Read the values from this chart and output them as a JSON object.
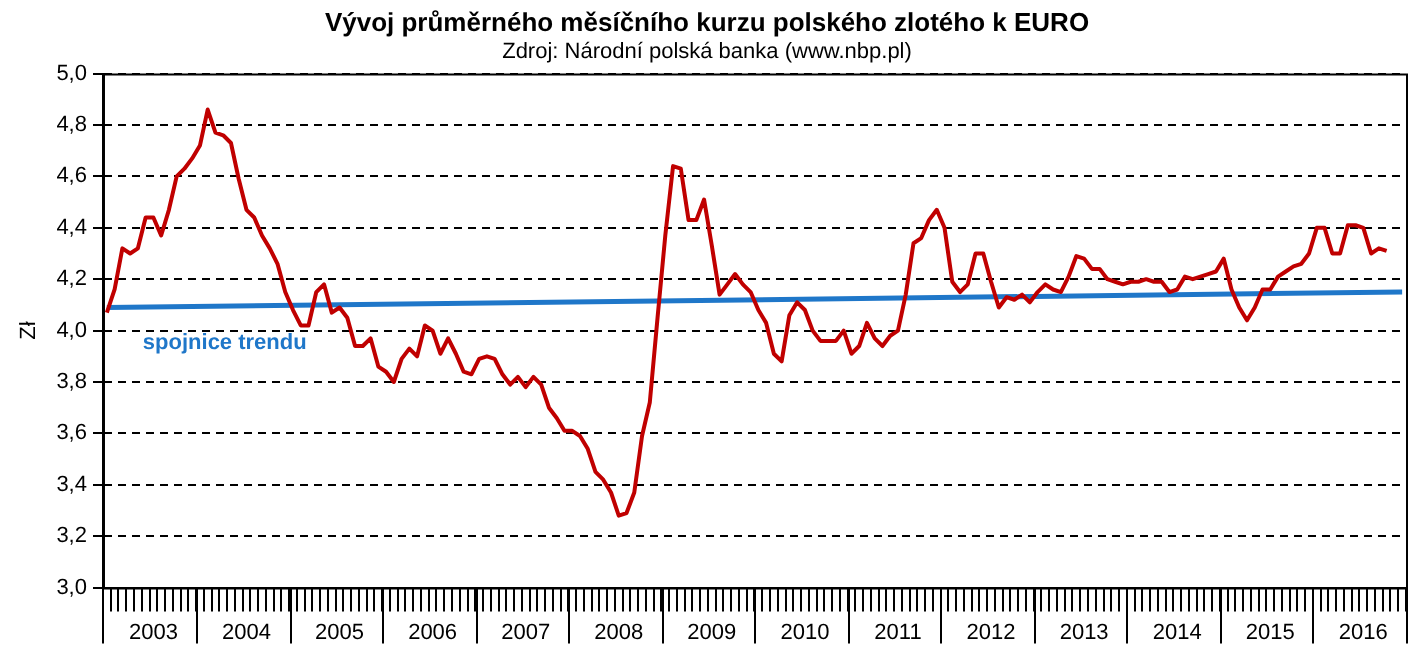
{
  "chart_data": {
    "type": "line",
    "title": "Vývoj průměrného měsíčního kurzu polského zlotého k EURO",
    "subtitle": "Zdroj: Národní polská banka (www.nbp.pl)",
    "ylabel": "Zł",
    "categories": [
      null,
      null,
      null,
      null,
      null,
      null,
      "2003",
      null,
      null,
      null,
      null,
      null,
      null,
      null,
      null,
      null,
      null,
      null,
      "2004",
      null,
      null,
      null,
      null,
      null,
      null,
      null,
      null,
      null,
      null,
      null,
      "2005",
      null,
      null,
      null,
      null,
      null,
      null,
      null,
      null,
      null,
      null,
      null,
      "2006",
      null,
      null,
      null,
      null,
      null,
      null,
      null,
      null,
      null,
      null,
      null,
      "2007",
      null,
      null,
      null,
      null,
      null,
      null,
      null,
      null,
      null,
      null,
      null,
      "2008",
      null,
      null,
      null,
      null,
      null,
      null,
      null,
      null,
      null,
      null,
      null,
      "2009",
      null,
      null,
      null,
      null,
      null,
      null,
      null,
      null,
      null,
      null,
      null,
      "2010",
      null,
      null,
      null,
      null,
      null,
      null,
      null,
      null,
      null,
      null,
      null,
      "2011",
      null,
      null,
      null,
      null,
      null,
      null,
      null,
      null,
      null,
      null,
      null,
      "2012",
      null,
      null,
      null,
      null,
      null,
      null,
      null,
      null,
      null,
      null,
      null,
      "2013",
      null,
      null,
      null,
      null,
      null,
      null,
      null,
      null,
      null,
      null,
      null,
      "2014",
      null,
      null,
      null,
      null,
      null,
      null,
      null,
      null,
      null,
      null,
      null,
      "2015",
      null,
      null,
      null,
      null,
      null,
      null,
      null,
      null,
      null,
      null,
      null,
      "2016",
      null,
      null,
      null,
      null,
      null
    ],
    "series": [
      {
        "color": "#c00000",
        "values": [
          4.07,
          4.16,
          4.32,
          4.3,
          4.32,
          4.44,
          4.44,
          4.37,
          4.47,
          4.6,
          4.63,
          4.67,
          4.72,
          4.86,
          4.77,
          4.76,
          4.73,
          4.59,
          4.47,
          4.44,
          4.37,
          4.32,
          4.26,
          4.15,
          4.08,
          4.02,
          4.02,
          4.15,
          4.18,
          4.07,
          4.09,
          4.05,
          3.94,
          3.94,
          3.97,
          3.86,
          3.84,
          3.8,
          3.89,
          3.93,
          3.9,
          4.02,
          4.0,
          3.91,
          3.97,
          3.91,
          3.84,
          3.83,
          3.89,
          3.9,
          3.89,
          3.83,
          3.79,
          3.82,
          3.78,
          3.82,
          3.79,
          3.7,
          3.66,
          3.61,
          3.61,
          3.59,
          3.54,
          3.45,
          3.42,
          3.37,
          3.28,
          3.29,
          3.37,
          3.59,
          3.72,
          4.05,
          4.37,
          4.64,
          4.63,
          4.43,
          4.43,
          4.51,
          4.33,
          4.14,
          4.18,
          4.22,
          4.18,
          4.15,
          4.08,
          4.03,
          3.91,
          3.88,
          4.06,
          4.11,
          4.08,
          4.0,
          3.96,
          3.96,
          3.96,
          4.0,
          3.91,
          3.94,
          4.03,
          3.97,
          3.94,
          3.98,
          4.0,
          4.14,
          4.34,
          4.36,
          4.43,
          4.47,
          4.4,
          4.19,
          4.15,
          4.18,
          4.3,
          4.3,
          4.19,
          4.09,
          4.13,
          4.12,
          4.14,
          4.11,
          4.15,
          4.18,
          4.16,
          4.15,
          4.21,
          4.29,
          4.28,
          4.24,
          4.24,
          4.2,
          4.19,
          4.18,
          4.19,
          4.19,
          4.2,
          4.19,
          4.19,
          4.15,
          4.16,
          4.21,
          4.2,
          4.21,
          4.22,
          4.23,
          4.28,
          4.16,
          4.09,
          4.04,
          4.09,
          4.16,
          4.16,
          4.21,
          4.23,
          4.25,
          4.26,
          4.3,
          4.4,
          4.4,
          4.3,
          4.3,
          4.41,
          4.41,
          4.4,
          4.3,
          4.32,
          4.31,
          null,
          null
        ]
      },
      {
        "type": "line",
        "name": "spojnice trendu",
        "color": "#1f77c9",
        "values": [
          4.09,
          null,
          null,
          null,
          null,
          null,
          null,
          null,
          null,
          null,
          null,
          null,
          null,
          null,
          null,
          null,
          null,
          null,
          null,
          null,
          null,
          null,
          null,
          null,
          null,
          null,
          null,
          null,
          null,
          null,
          null,
          null,
          null,
          null,
          null,
          null,
          null,
          null,
          null,
          null,
          null,
          null,
          null,
          null,
          null,
          null,
          null,
          null,
          null,
          null,
          null,
          null,
          null,
          null,
          null,
          null,
          null,
          null,
          null,
          null,
          null,
          null,
          null,
          null,
          null,
          null,
          null,
          null,
          null,
          null,
          null,
          null,
          null,
          null,
          null,
          null,
          null,
          null,
          null,
          null,
          null,
          null,
          null,
          null,
          null,
          null,
          null,
          null,
          null,
          null,
          null,
          null,
          null,
          null,
          null,
          null,
          null,
          null,
          null,
          null,
          null,
          null,
          null,
          null,
          null,
          null,
          null,
          null,
          null,
          null,
          null,
          null,
          null,
          null,
          null,
          null,
          null,
          null,
          null,
          null,
          null,
          null,
          null,
          null,
          null,
          null,
          null,
          null,
          null,
          null,
          null,
          null,
          null,
          null,
          null,
          null,
          null,
          null,
          null,
          null,
          null,
          null,
          null,
          null,
          null,
          null,
          null,
          null,
          null,
          null,
          null,
          null,
          null,
          null,
          null,
          null,
          null,
          null,
          null,
          null,
          null,
          null,
          null,
          null,
          null,
          null,
          null,
          4.15
        ]
      }
    ],
    "ylim": [
      3.0,
      5.0
    ],
    "yticks": [
      {
        "value": 3.0,
        "label": "3,0"
      },
      {
        "value": 3.2,
        "label": "3,2"
      },
      {
        "value": 3.4,
        "label": "3,4"
      },
      {
        "value": 3.6,
        "label": "3,6"
      },
      {
        "value": 3.8,
        "label": "3,8"
      },
      {
        "value": 4.0,
        "label": "4,0"
      },
      {
        "value": 4.2,
        "label": "4,2"
      },
      {
        "value": 4.4,
        "label": "4,4"
      },
      {
        "value": 4.6,
        "label": "4,6"
      },
      {
        "value": 4.8,
        "label": "4,8"
      },
      {
        "value": 5.0,
        "label": "5,0"
      }
    ],
    "grid": "y",
    "legend": false,
    "marker": "none",
    "line_style": "solid"
  }
}
